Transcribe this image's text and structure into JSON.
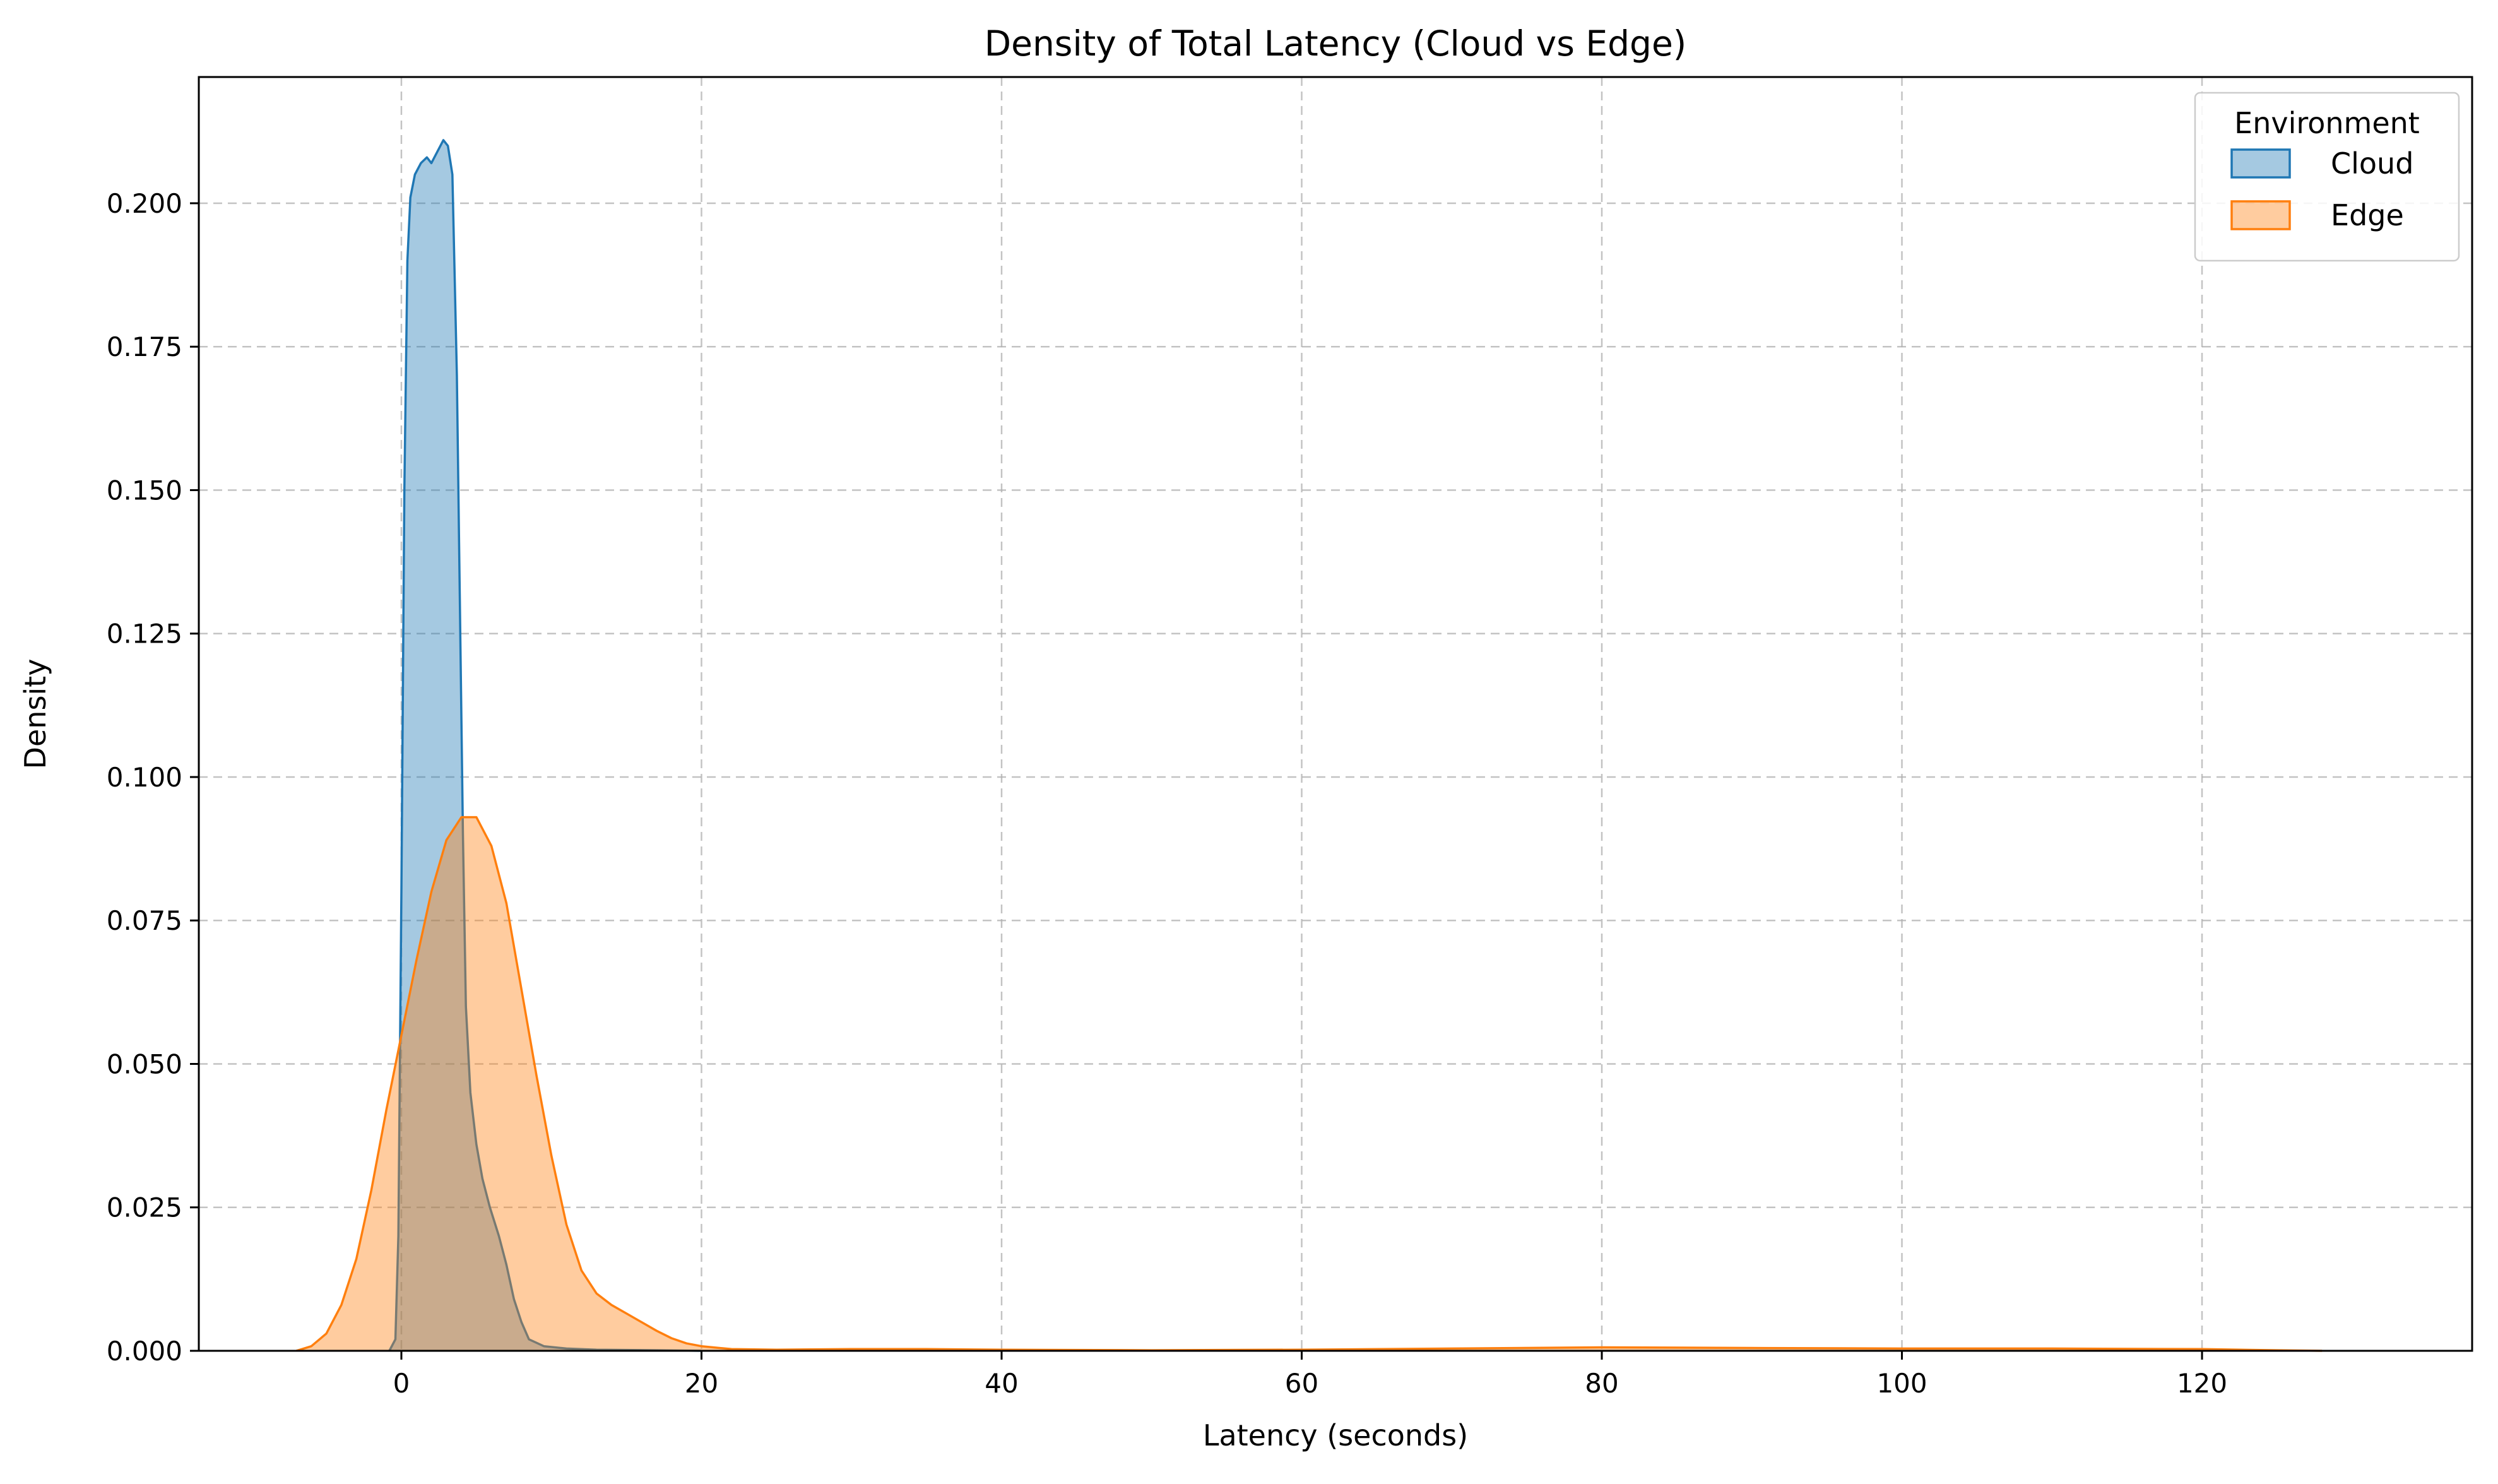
{
  "chart_data": {
    "type": "area",
    "title": "Density of Total Latency (Cloud vs Edge)",
    "xlabel": "Latency (seconds)",
    "ylabel": "Density",
    "xlim": [
      -13.5,
      138
    ],
    "ylim": [
      0,
      0.222
    ],
    "x_ticks": [
      "0",
      "20",
      "40",
      "60",
      "80",
      "100",
      "120"
    ],
    "x_tick_values": [
      0,
      20,
      40,
      60,
      80,
      100,
      120
    ],
    "y_ticks": [
      "0.000",
      "0.025",
      "0.050",
      "0.075",
      "0.100",
      "0.125",
      "0.150",
      "0.175",
      "0.200"
    ],
    "y_tick_values": [
      0,
      0.025,
      0.05,
      0.075,
      0.1,
      0.125,
      0.15,
      0.175,
      0.2
    ],
    "grid": true,
    "legend": {
      "title": "Environment",
      "placement": "top-right"
    },
    "series": [
      {
        "name": "Cloud",
        "color": "#1f77b4",
        "fill": "#1f77b4",
        "points": [
          [
            -0.8,
            0
          ],
          [
            -0.4,
            0.002
          ],
          [
            -0.2,
            0.02
          ],
          [
            0,
            0.08
          ],
          [
            0.2,
            0.15
          ],
          [
            0.4,
            0.19
          ],
          [
            0.6,
            0.201
          ],
          [
            0.9,
            0.205
          ],
          [
            1.3,
            0.207
          ],
          [
            1.7,
            0.208
          ],
          [
            2.0,
            0.207
          ],
          [
            2.4,
            0.209
          ],
          [
            2.8,
            0.211
          ],
          [
            3.1,
            0.21
          ],
          [
            3.4,
            0.205
          ],
          [
            3.7,
            0.17
          ],
          [
            3.9,
            0.13
          ],
          [
            4.1,
            0.09
          ],
          [
            4.3,
            0.06
          ],
          [
            4.6,
            0.045
          ],
          [
            5.0,
            0.036
          ],
          [
            5.4,
            0.03
          ],
          [
            5.9,
            0.025
          ],
          [
            6.5,
            0.02
          ],
          [
            7.0,
            0.015
          ],
          [
            7.5,
            0.009
          ],
          [
            8.0,
            0.005
          ],
          [
            8.5,
            0.002
          ],
          [
            9.5,
            0.0008
          ],
          [
            11,
            0.0004
          ],
          [
            13,
            0.0002
          ],
          [
            17,
            0.0001
          ],
          [
            20,
            0
          ]
        ]
      },
      {
        "name": "Edge",
        "color": "#ff7f0e",
        "fill": "#ff7f0e",
        "points": [
          [
            -7,
            0
          ],
          [
            -6,
            0.0008
          ],
          [
            -5,
            0.003
          ],
          [
            -4,
            0.008
          ],
          [
            -3,
            0.016
          ],
          [
            -2,
            0.028
          ],
          [
            -1,
            0.042
          ],
          [
            0,
            0.055
          ],
          [
            1,
            0.068
          ],
          [
            2,
            0.08
          ],
          [
            3,
            0.089
          ],
          [
            4,
            0.093
          ],
          [
            5,
            0.093
          ],
          [
            6,
            0.088
          ],
          [
            7,
            0.078
          ],
          [
            8,
            0.063
          ],
          [
            9,
            0.048
          ],
          [
            10,
            0.034
          ],
          [
            11,
            0.022
          ],
          [
            12,
            0.014
          ],
          [
            13,
            0.01
          ],
          [
            14,
            0.008
          ],
          [
            15,
            0.0065
          ],
          [
            16,
            0.005
          ],
          [
            17,
            0.0035
          ],
          [
            18,
            0.0022
          ],
          [
            19,
            0.0013
          ],
          [
            20,
            0.0008
          ],
          [
            22,
            0.0003
          ],
          [
            25,
            0.0002
          ],
          [
            30,
            0.0003
          ],
          [
            35,
            0.0003
          ],
          [
            40,
            0.0002
          ],
          [
            50,
            0.0001
          ],
          [
            60,
            0.0002
          ],
          [
            70,
            0.0004
          ],
          [
            80,
            0.0006
          ],
          [
            90,
            0.0005
          ],
          [
            100,
            0.0004
          ],
          [
            110,
            0.0004
          ],
          [
            120,
            0.0003
          ],
          [
            125,
            0.0001
          ],
          [
            128,
            0
          ]
        ]
      }
    ]
  }
}
